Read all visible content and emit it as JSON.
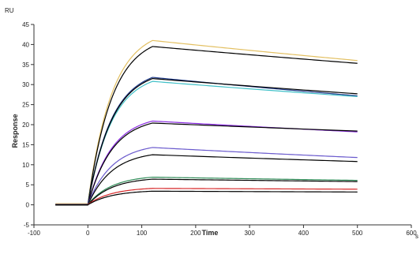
{
  "chart_data": {
    "type": "line",
    "title": "",
    "xlabel": "Time",
    "ylabel": "Response",
    "x_unit": "s",
    "y_unit": "RU",
    "xlim": [
      -100,
      600
    ],
    "ylim": [
      -5,
      45
    ],
    "x_ticks": [
      -100,
      0,
      100,
      200,
      300,
      400,
      500,
      600
    ],
    "y_ticks": [
      -5,
      0,
      5,
      10,
      15,
      20,
      25,
      30,
      35,
      40,
      45
    ],
    "x_tick_labels": [
      "-100",
      "0",
      "100",
      "200",
      "300",
      "400",
      "500",
      "600"
    ],
    "y_tick_labels": [
      "-5",
      "0",
      "5",
      "10",
      "15",
      "20",
      "25",
      "30",
      "35",
      "40",
      "45"
    ],
    "grid": false,
    "legend": "none",
    "injection_start": 0,
    "injection_end": 120,
    "series": [
      {
        "color": "#e3c062",
        "values": [
          {
            "x": -60,
            "y": 0.3
          },
          {
            "x": 0,
            "y": 0.3
          },
          {
            "x": 120,
            "y": 41
          },
          {
            "x": 500,
            "y": 36.0
          }
        ]
      },
      {
        "color": "#000000",
        "values": [
          {
            "x": -60,
            "y": 0.0
          },
          {
            "x": 0,
            "y": 0.0
          },
          {
            "x": 120,
            "y": 39.5
          },
          {
            "x": 500,
            "y": 35.3
          }
        ]
      },
      {
        "color": "#1f3a8a",
        "values": [
          {
            "x": -60,
            "y": 0.2
          },
          {
            "x": 0,
            "y": 0.2
          },
          {
            "x": 120,
            "y": 31.8
          },
          {
            "x": 500,
            "y": 27.2
          }
        ]
      },
      {
        "color": "#40c0c8",
        "values": [
          {
            "x": -60,
            "y": 0.2
          },
          {
            "x": 0,
            "y": 0.2
          },
          {
            "x": 120,
            "y": 30.8
          },
          {
            "x": 500,
            "y": 27.0
          }
        ]
      },
      {
        "color": "#000000",
        "values": [
          {
            "x": -60,
            "y": 0.0
          },
          {
            "x": 0,
            "y": 0.0
          },
          {
            "x": 120,
            "y": 31.5
          },
          {
            "x": 500,
            "y": 27.7
          }
        ]
      },
      {
        "color": "#8a2be2",
        "values": [
          {
            "x": -60,
            "y": 0.1
          },
          {
            "x": 0,
            "y": 0.1
          },
          {
            "x": 120,
            "y": 20.9
          },
          {
            "x": 500,
            "y": 18.2
          }
        ]
      },
      {
        "color": "#000000",
        "values": [
          {
            "x": -60,
            "y": 0.0
          },
          {
            "x": 0,
            "y": 0.0
          },
          {
            "x": 120,
            "y": 20.4
          },
          {
            "x": 500,
            "y": 18.4
          }
        ]
      },
      {
        "color": "#6a5acd",
        "values": [
          {
            "x": -60,
            "y": 0.1
          },
          {
            "x": 0,
            "y": 0.1
          },
          {
            "x": 120,
            "y": 14.3
          },
          {
            "x": 500,
            "y": 11.8
          }
        ]
      },
      {
        "color": "#000000",
        "values": [
          {
            "x": -60,
            "y": 0.0
          },
          {
            "x": 0,
            "y": 0.0
          },
          {
            "x": 120,
            "y": 12.5
          },
          {
            "x": 500,
            "y": 10.8
          }
        ]
      },
      {
        "color": "#2e8b57",
        "values": [
          {
            "x": -60,
            "y": 0.1
          },
          {
            "x": 0,
            "y": 0.1
          },
          {
            "x": 120,
            "y": 6.9
          },
          {
            "x": 500,
            "y": 6.1
          }
        ]
      },
      {
        "color": "#000000",
        "values": [
          {
            "x": -60,
            "y": 0.0
          },
          {
            "x": 0,
            "y": 0.0
          },
          {
            "x": 120,
            "y": 6.4
          },
          {
            "x": 500,
            "y": 5.8
          }
        ]
      },
      {
        "color": "#d62728",
        "values": [
          {
            "x": -60,
            "y": 0.1
          },
          {
            "x": 0,
            "y": 0.1
          },
          {
            "x": 120,
            "y": 4.1
          },
          {
            "x": 500,
            "y": 3.9
          }
        ]
      },
      {
        "color": "#000000",
        "values": [
          {
            "x": -60,
            "y": 0.0
          },
          {
            "x": 0,
            "y": 0.0
          },
          {
            "x": 120,
            "y": 3.4
          },
          {
            "x": 500,
            "y": 3.2
          }
        ]
      }
    ]
  }
}
